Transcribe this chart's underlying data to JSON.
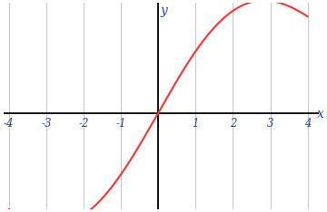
{
  "x_min": -4,
  "x_max": 4,
  "y_lim_low": -2.8,
  "y_lim_high": 3.2,
  "curve_color": "#ff3333",
  "curve_linewidth": 1.5,
  "axis_color": "#000000",
  "grid_color": "#c8c8c8",
  "grid_linewidth": 0.75,
  "tick_positions": [
    -4,
    -3,
    -2,
    -1,
    1,
    2,
    3,
    4
  ],
  "xlabel": "x",
  "ylabel": "y",
  "background_color": "#ffffff",
  "func_a": 0.5,
  "func_b": 8.0,
  "func_scale": 3.5
}
